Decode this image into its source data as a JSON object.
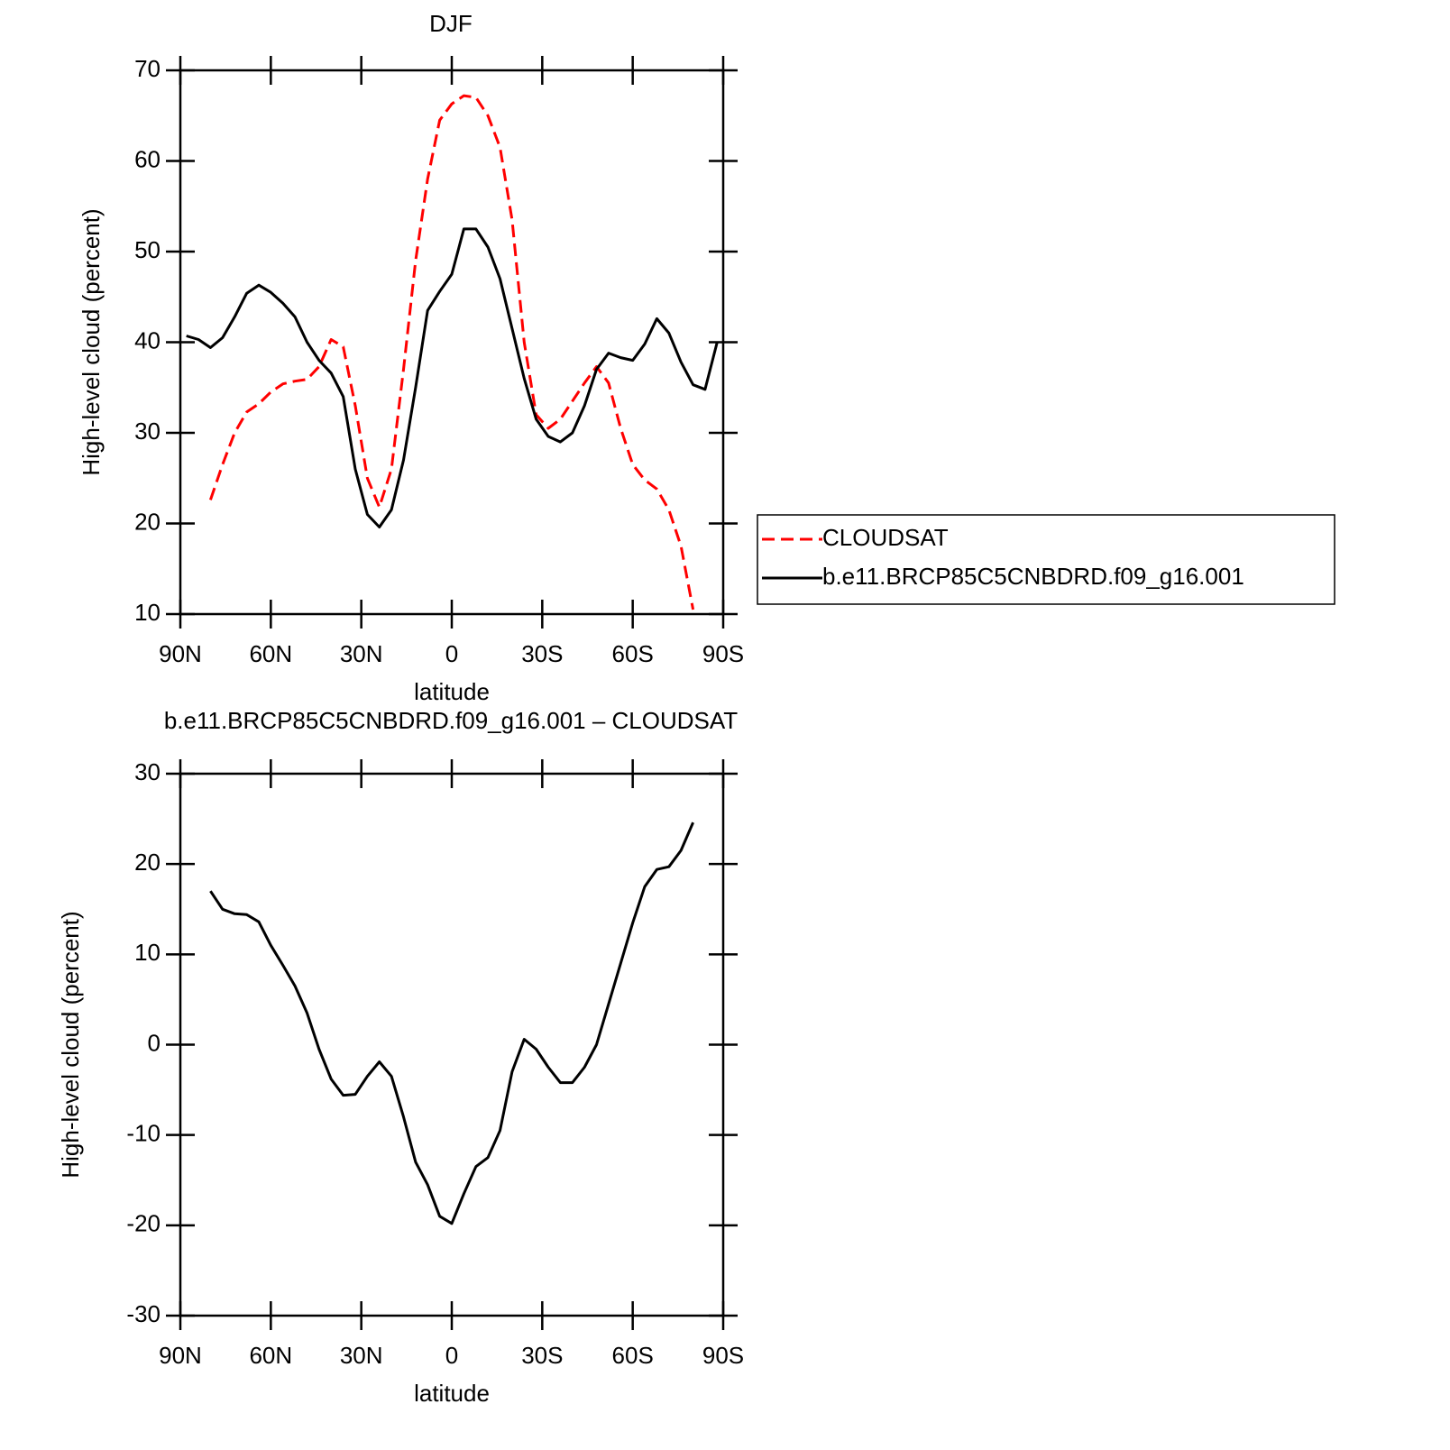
{
  "chart_data": [
    {
      "type": "line",
      "title": "DJF",
      "xlabel": "latitude",
      "ylabel": "High-level cloud (percent)",
      "x": [
        88,
        84,
        80,
        76,
        72,
        68,
        64,
        60,
        56,
        52,
        48,
        44,
        40,
        36,
        32,
        28,
        24,
        20,
        16,
        12,
        8,
        4,
        0,
        -4,
        -8,
        -12,
        -16,
        -20,
        -24,
        -28,
        -32,
        -36,
        -40,
        -44,
        -48,
        -52,
        -56,
        -60,
        -64,
        -68,
        -72,
        -76,
        -80,
        -84,
        -88
      ],
      "xlim": [
        90,
        -90
      ],
      "xticks": [
        {
          "value": 90,
          "label": "90N"
        },
        {
          "value": 60,
          "label": "60N"
        },
        {
          "value": 30,
          "label": "30N"
        },
        0,
        {
          "value": -30,
          "label": "30S"
        },
        {
          "value": -60,
          "label": "60S"
        },
        {
          "value": -90,
          "label": "90S"
        }
      ],
      "ylim": [
        10,
        70
      ],
      "yticks": [
        10,
        20,
        30,
        40,
        50,
        60,
        70
      ],
      "legend": true,
      "series": [
        {
          "name": "CLOUDSAT",
          "color": "#ff0000",
          "dash": true,
          "values": [
            null,
            null,
            22.6,
            26.5,
            30.0,
            32.3,
            33.2,
            34.5,
            35.4,
            35.7,
            35.9,
            37.3,
            40.3,
            39.5,
            33.0,
            25.0,
            21.8,
            26.0,
            37.0,
            49.0,
            58.0,
            64.5,
            66.3,
            67.2,
            67.0,
            65.0,
            61.5,
            53.5,
            40.0,
            32.0,
            30.5,
            31.5,
            33.5,
            35.5,
            37.3,
            35.5,
            30.5,
            26.5,
            24.8,
            23.8,
            21.5,
            17.5,
            10.5,
            null,
            null
          ]
        },
        {
          "name": "b.e11.BRCP85C5CNBDRD.f09_g16.001",
          "color": "#000000",
          "dash": false,
          "values": [
            40.7,
            40.3,
            39.4,
            40.5,
            42.8,
            45.4,
            46.3,
            45.5,
            44.3,
            42.8,
            40.0,
            38.0,
            36.6,
            34.0,
            26.0,
            21.0,
            19.6,
            21.5,
            27.0,
            35.0,
            43.5,
            45.6,
            47.5,
            52.5,
            52.5,
            50.5,
            47.0,
            41.5,
            36.0,
            31.5,
            29.6,
            29.0,
            30.0,
            33.0,
            37.0,
            38.8,
            38.3,
            38.0,
            39.8,
            42.6,
            41.0,
            37.8,
            35.3,
            34.8,
            40.0
          ]
        }
      ]
    },
    {
      "type": "line",
      "title": "b.e11.BRCP85C5CNBDRD.f09_g16.001 – CLOUDSAT",
      "xlabel": "latitude",
      "ylabel": "High-level cloud (percent)",
      "x": [
        88,
        84,
        80,
        76,
        72,
        68,
        64,
        60,
        56,
        52,
        48,
        44,
        40,
        36,
        32,
        28,
        24,
        20,
        16,
        12,
        8,
        4,
        0,
        -4,
        -8,
        -12,
        -16,
        -20,
        -24,
        -28,
        -32,
        -36,
        -40,
        -44,
        -48,
        -52,
        -56,
        -60,
        -64,
        -68,
        -72,
        -76,
        -80,
        -84,
        -88
      ],
      "xlim": [
        90,
        -90
      ],
      "xticks": [
        {
          "value": 90,
          "label": "90N"
        },
        {
          "value": 60,
          "label": "60N"
        },
        {
          "value": 30,
          "label": "30N"
        },
        0,
        {
          "value": -30,
          "label": "30S"
        },
        {
          "value": -60,
          "label": "60S"
        },
        {
          "value": -90,
          "label": "90S"
        }
      ],
      "ylim": [
        -30,
        30
      ],
      "yticks": [
        -30,
        -20,
        -10,
        0,
        10,
        20,
        30
      ],
      "legend": false,
      "series": [
        {
          "color": "#000000",
          "dash": false,
          "values": [
            null,
            null,
            17.0,
            15.0,
            14.5,
            14.4,
            13.6,
            11.0,
            8.8,
            6.5,
            3.5,
            -0.5,
            -3.8,
            -5.6,
            -5.5,
            -3.5,
            -1.9,
            -3.5,
            -8.0,
            -13.0,
            -15.5,
            -19.0,
            -19.8,
            -16.5,
            -13.5,
            -12.5,
            -9.5,
            -3.0,
            0.6,
            -0.5,
            -2.5,
            -4.2,
            -4.2,
            -2.5,
            0.0,
            4.5,
            9.0,
            13.5,
            17.5,
            19.4,
            19.7,
            21.5,
            24.6,
            null,
            null
          ]
        }
      ]
    }
  ]
}
